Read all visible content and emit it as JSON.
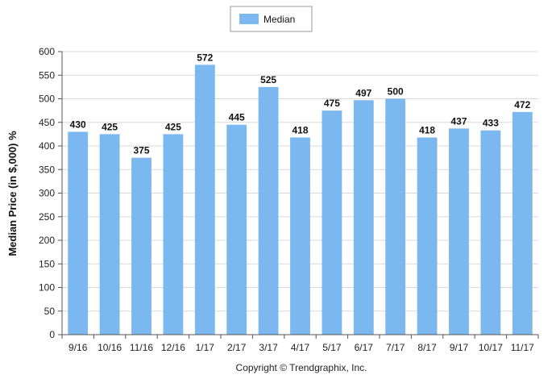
{
  "chart_data": {
    "type": "bar",
    "categories": [
      "9/16",
      "10/16",
      "11/16",
      "12/16",
      "1/17",
      "2/17",
      "3/17",
      "4/17",
      "5/17",
      "6/17",
      "7/17",
      "8/17",
      "9/17",
      "10/17",
      "11/17"
    ],
    "series": [
      {
        "name": "Median",
        "values": [
          430,
          425,
          375,
          425,
          572,
          445,
          525,
          418,
          475,
          497,
          500,
          418,
          437,
          433,
          472
        ],
        "color": "#7ab8ef"
      }
    ],
    "ylabel": "Median Price (in $,000) %",
    "xlabel": "",
    "ylim": [
      0,
      600
    ],
    "yticks": [
      0,
      50,
      100,
      150,
      200,
      250,
      300,
      350,
      400,
      450,
      500,
      550,
      600
    ],
    "grid": true,
    "legend": "top-center"
  },
  "footer": {
    "copyright": "Copyright © Trendgraphix, Inc."
  }
}
